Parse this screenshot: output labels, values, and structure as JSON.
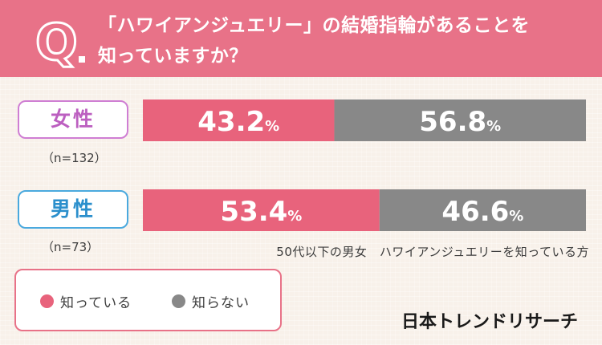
{
  "question": {
    "line1": "「ハワイアンジュエリー」の結婚指輪があることを",
    "line2": "知っていますか？"
  },
  "groups": [
    {
      "label": "女性",
      "count": "（n=132）"
    },
    {
      "label": "男性",
      "count": "（n=73）"
    }
  ],
  "chart_data": {
    "type": "bar",
    "orientation": "horizontal",
    "stacked": true,
    "categories": [
      "女性",
      "男性"
    ],
    "series": [
      {
        "name": "知っている",
        "values": [
          43.2,
          53.4
        ],
        "color": "#e8637c"
      },
      {
        "name": "知らない",
        "values": [
          56.8,
          46.6
        ],
        "color": "#888888"
      }
    ],
    "unit": "%",
    "xlim": [
      0,
      100
    ],
    "grid": false,
    "legend_placement": "bottom-left"
  },
  "footnote": "50代以下の男女　ハワイアンジュエリーを知っている方",
  "legend": [
    {
      "label": "知っている",
      "color": "#e8637c"
    },
    {
      "label": "知らない",
      "color": "#888888"
    }
  ],
  "brand": "日本トレンドリサーチ",
  "colors": {
    "header": "#e87288",
    "background": "#f8f1ea"
  }
}
